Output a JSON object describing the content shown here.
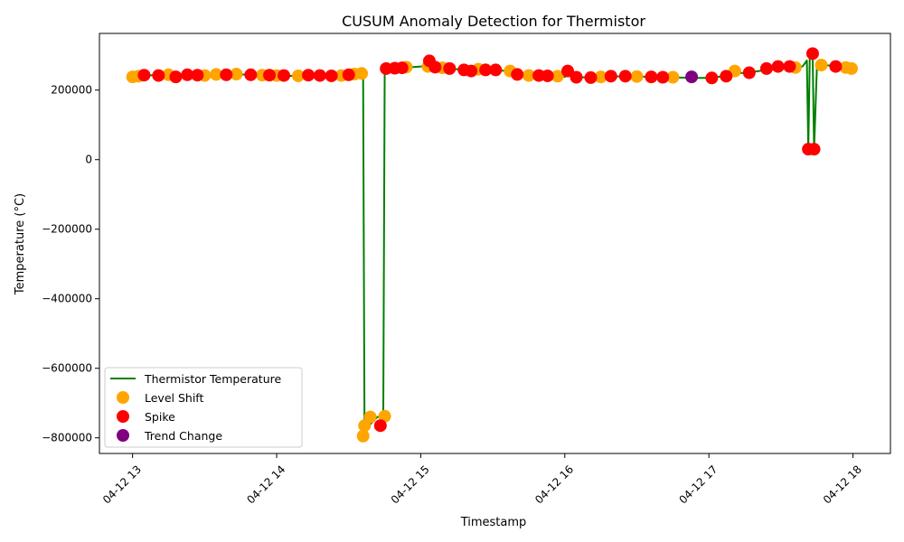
{
  "chart_data": {
    "type": "line",
    "title": "CUSUM Anomaly Detection for Thermistor",
    "xlabel": "Timestamp",
    "ylabel": "Temperature (°C)",
    "x_ticks": [
      {
        "hour": 13,
        "label": "04-12 13"
      },
      {
        "hour": 14,
        "label": "04-12 14"
      },
      {
        "hour": 15,
        "label": "04-12 15"
      },
      {
        "hour": 16,
        "label": "04-12 16"
      },
      {
        "hour": 17,
        "label": "04-12 17"
      },
      {
        "hour": 18,
        "label": "04-12 18"
      }
    ],
    "y_ticks": [
      {
        "value": 200000,
        "label": "200000"
      },
      {
        "value": 0,
        "label": "0"
      },
      {
        "value": -200000,
        "label": "−200000"
      },
      {
        "value": -400000,
        "label": "−400000"
      },
      {
        "value": -600000,
        "label": "−600000"
      },
      {
        "value": -800000,
        "label": "−800000"
      }
    ],
    "xlim": [
      12.77,
      18.26
    ],
    "ylim": [
      -845000,
      363000
    ],
    "grid": false,
    "legend_position": "lower-left",
    "series": [
      {
        "name": "Thermistor Temperature",
        "style": "line",
        "color": "#008000",
        "x": [
          13.0,
          13.1,
          13.2,
          13.3,
          13.4,
          13.5,
          13.6,
          13.7,
          13.8,
          13.9,
          14.0,
          14.1,
          14.2,
          14.3,
          14.4,
          14.5,
          14.55,
          14.6,
          14.61,
          14.64,
          14.7,
          14.74,
          14.75,
          14.8,
          14.9,
          15.0,
          15.05,
          15.1,
          15.2,
          15.3,
          15.4,
          15.5,
          15.6,
          15.65,
          15.7,
          15.8,
          15.9,
          16.0,
          16.02,
          16.1,
          16.2,
          16.3,
          16.4,
          16.5,
          16.6,
          16.7,
          16.8,
          16.9,
          17.0,
          17.1,
          17.2,
          17.3,
          17.4,
          17.5,
          17.6,
          17.65,
          17.68,
          17.69,
          17.7,
          17.72,
          17.73,
          17.75,
          17.8,
          17.9,
          18.0
        ],
        "y": [
          238000,
          243000,
          242000,
          241000,
          244000,
          243000,
          245000,
          246000,
          244000,
          243000,
          242000,
          241000,
          243000,
          242000,
          241000,
          246000,
          248000,
          248000,
          -795000,
          -765000,
          -740000,
          -738000,
          262000,
          263000,
          265000,
          268000,
          270000,
          265000,
          262000,
          258000,
          260000,
          258000,
          255000,
          245000,
          244000,
          242000,
          240000,
          238000,
          245000,
          237000,
          236000,
          238000,
          240000,
          239000,
          238000,
          237000,
          236000,
          235000,
          235000,
          240000,
          248000,
          252000,
          258000,
          262000,
          265000,
          268000,
          285000,
          30000,
          290000,
          305000,
          30000,
          270000,
          272000,
          268000,
          262000
        ]
      },
      {
        "name": "Level Shift",
        "style": "scatter",
        "color": "#FFA500",
        "x": [
          13.0,
          13.04,
          13.25,
          13.5,
          13.58,
          13.72,
          13.9,
          14.0,
          14.15,
          14.45,
          14.54,
          14.59,
          14.6,
          14.61,
          14.65,
          14.75,
          14.9,
          15.05,
          15.15,
          15.4,
          15.62,
          15.75,
          15.95,
          16.25,
          16.5,
          16.75,
          17.18,
          17.6,
          17.78,
          17.95,
          17.99
        ],
        "y": [
          238000,
          240000,
          244000,
          242000,
          245000,
          246000,
          243000,
          242000,
          241000,
          242000,
          246000,
          248000,
          -795000,
          -765000,
          -740000,
          -738000,
          266000,
          268000,
          264000,
          260000,
          255000,
          242000,
          240000,
          238000,
          239000,
          237000,
          255000,
          265000,
          272000,
          265000,
          262000
        ]
      },
      {
        "name": "Spike",
        "style": "scatter",
        "color": "#FF0000",
        "x": [
          13.08,
          13.18,
          13.3,
          13.38,
          13.45,
          13.65,
          13.82,
          13.95,
          14.05,
          14.22,
          14.3,
          14.38,
          14.5,
          14.72,
          14.76,
          14.82,
          14.87,
          15.06,
          15.1,
          15.2,
          15.3,
          15.35,
          15.45,
          15.52,
          15.67,
          15.82,
          15.88,
          16.02,
          16.08,
          16.18,
          16.32,
          16.42,
          16.6,
          16.68,
          17.02,
          17.12,
          17.28,
          17.4,
          17.48,
          17.56,
          17.69,
          17.72,
          17.73,
          17.88
        ],
        "y": [
          243000,
          242000,
          238000,
          244000,
          243000,
          244000,
          244000,
          243000,
          242000,
          243000,
          242000,
          241000,
          244000,
          -765000,
          262000,
          263000,
          264000,
          284000,
          266000,
          262000,
          258000,
          255000,
          258000,
          258000,
          245000,
          242000,
          241000,
          255000,
          237000,
          236000,
          240000,
          240000,
          238000,
          237000,
          235000,
          240000,
          250000,
          262000,
          268000,
          268000,
          30000,
          305000,
          30000,
          268000
        ]
      },
      {
        "name": "Trend Change",
        "style": "scatter",
        "color": "#800080",
        "x": [
          16.88
        ],
        "y": [
          238000
        ]
      }
    ]
  }
}
